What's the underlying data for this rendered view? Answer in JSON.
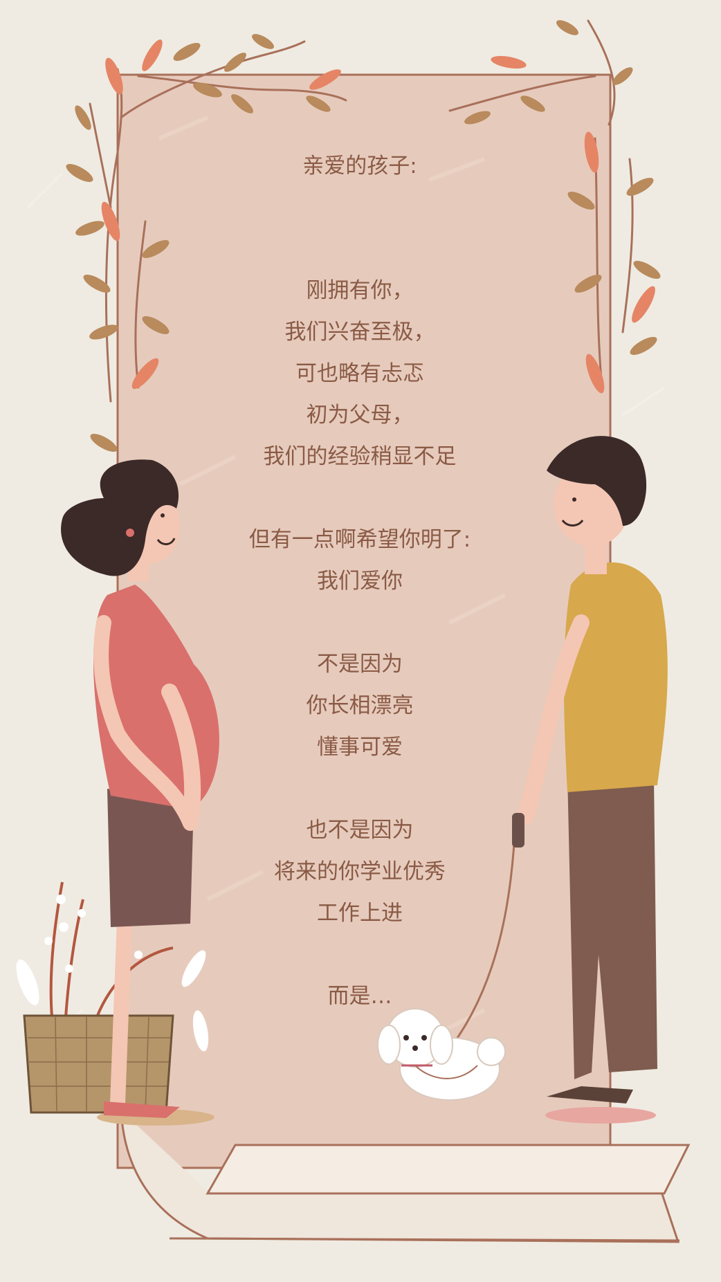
{
  "letter": {
    "stanzas": [
      [
        "亲爱的孩子:"
      ],
      [
        "刚拥有你，",
        "我们兴奋至极，",
        "可也略有忐忑",
        "初为父母，",
        "我们的经验稍显不足"
      ],
      [
        "但有一点啊希望你明了:",
        "我们爱你"
      ],
      [
        "不是因为",
        "你长相漂亮",
        "懂事可爱"
      ],
      [
        "也不是因为",
        "将来的你学业优秀",
        "工作上进"
      ],
      [
        "而是…"
      ]
    ]
  },
  "colors": {
    "background": "#efebe2",
    "scroll": "#e6cbbd",
    "scroll_border": "#a9705a",
    "text": "#8a5a45",
    "leaf_brown": "#b88a5c",
    "leaf_coral": "#e58566",
    "woman_dress": "#d9706c",
    "woman_shorts": "#7a5652",
    "man_shirt": "#d7a84c",
    "man_pants": "#7f5c4f",
    "skin": "#f4c6b4",
    "hair": "#3b2a28"
  },
  "illustration": {
    "icons": [
      "scroll-paper-icon",
      "vine-branches-icon",
      "pregnant-woman-icon",
      "man-with-leash-icon",
      "dog-icon",
      "flower-basket-icon"
    ]
  }
}
